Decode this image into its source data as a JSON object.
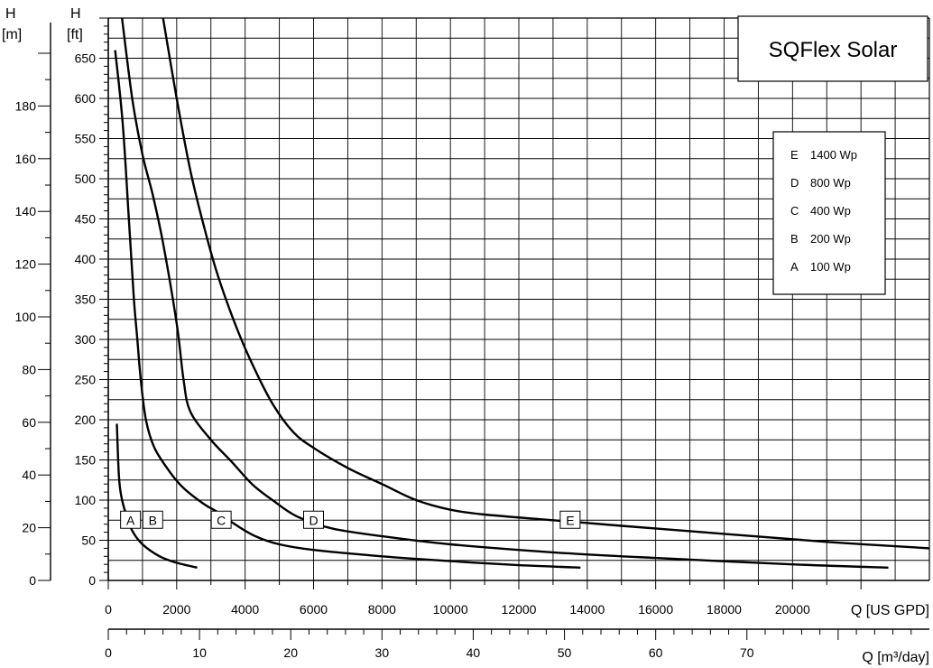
{
  "chart_data": {
    "type": "line",
    "title": "SQFlex Solar",
    "x_primary": {
      "label": "Q [US GPD]",
      "range": [
        0,
        24000
      ],
      "ticks": [
        0,
        2000,
        4000,
        6000,
        8000,
        10000,
        12000,
        14000,
        16000,
        18000,
        20000
      ]
    },
    "x_secondary": {
      "label": "Q [m³/day]",
      "range": [
        0,
        90
      ],
      "ticks": [
        0,
        10,
        20,
        30,
        40,
        50,
        60,
        70
      ]
    },
    "y_ft": {
      "label_top": "H",
      "label_unit": "[ft]",
      "range": [
        0,
        700
      ],
      "ticks": [
        0,
        50,
        100,
        150,
        200,
        250,
        300,
        350,
        400,
        450,
        500,
        550,
        600,
        650
      ]
    },
    "y_m": {
      "label_top": "H",
      "label_unit": "[m]",
      "range": [
        0,
        213.36
      ],
      "ticks": [
        0,
        20,
        40,
        60,
        80,
        100,
        120,
        140,
        160,
        180
      ]
    },
    "grid": true,
    "legend": {
      "placement": "top-right",
      "entries": [
        {
          "letter": "E",
          "text": "1400 Wp"
        },
        {
          "letter": "D",
          "text": "800 Wp"
        },
        {
          "letter": "C",
          "text": "400 Wp"
        },
        {
          "letter": "B",
          "text": "200 Wp"
        },
        {
          "letter": "A",
          "text": "100 Wp"
        }
      ]
    },
    "series": [
      {
        "name": "A",
        "label_at": [
          650,
          75
        ],
        "points": [
          [
            250,
            195
          ],
          [
            310,
            130
          ],
          [
            380,
            105
          ],
          [
            500,
            85
          ],
          [
            700,
            62
          ],
          [
            1000,
            45
          ],
          [
            1500,
            30
          ],
          [
            2000,
            22
          ],
          [
            2600,
            16
          ]
        ]
      },
      {
        "name": "B",
        "label_at": [
          1300,
          75
        ],
        "points": [
          [
            200,
            660
          ],
          [
            420,
            570
          ],
          [
            600,
            450
          ],
          [
            750,
            350
          ],
          [
            850,
            300
          ],
          [
            950,
            250
          ],
          [
            1100,
            200
          ],
          [
            1350,
            165
          ],
          [
            1800,
            135
          ],
          [
            2200,
            115
          ],
          [
            2800,
            95
          ],
          [
            3200,
            85
          ],
          [
            3700,
            70
          ],
          [
            4300,
            55
          ],
          [
            5000,
            45
          ],
          [
            6000,
            38
          ],
          [
            8000,
            30
          ],
          [
            10000,
            24
          ],
          [
            12000,
            19
          ],
          [
            13800,
            16
          ]
        ]
      },
      {
        "name": "C",
        "label_at": [
          3300,
          75
        ],
        "points": [
          [
            400,
            700
          ],
          [
            700,
            600
          ],
          [
            1000,
            530
          ],
          [
            1300,
            480
          ],
          [
            1600,
            420
          ],
          [
            2000,
            320
          ],
          [
            2200,
            250
          ],
          [
            2400,
            210
          ],
          [
            3000,
            175
          ],
          [
            3600,
            148
          ],
          [
            4200,
            120
          ],
          [
            4800,
            100
          ],
          [
            5500,
            80
          ],
          [
            6500,
            65
          ],
          [
            8000,
            55
          ],
          [
            10000,
            45
          ],
          [
            13000,
            35
          ],
          [
            16000,
            28
          ],
          [
            20000,
            20
          ],
          [
            22800,
            16
          ]
        ]
      },
      {
        "name": "D",
        "label_at": [
          6000,
          75
        ],
        "points": [
          [
            1600,
            700
          ],
          [
            2000,
            600
          ],
          [
            2400,
            510
          ],
          [
            2800,
            440
          ],
          [
            3200,
            380
          ],
          [
            3700,
            320
          ],
          [
            4200,
            270
          ],
          [
            4800,
            220
          ],
          [
            5400,
            185
          ],
          [
            6000,
            165
          ],
          [
            7000,
            140
          ],
          [
            8000,
            120
          ],
          [
            9000,
            100
          ],
          [
            10000,
            88
          ],
          [
            11000,
            82
          ],
          [
            13000,
            75
          ],
          [
            15000,
            68
          ],
          [
            18000,
            58
          ],
          [
            21000,
            48
          ],
          [
            24000,
            40
          ]
        ]
      },
      {
        "name": "E",
        "label_at": [
          13500,
          75
        ],
        "points": []
      }
    ]
  }
}
